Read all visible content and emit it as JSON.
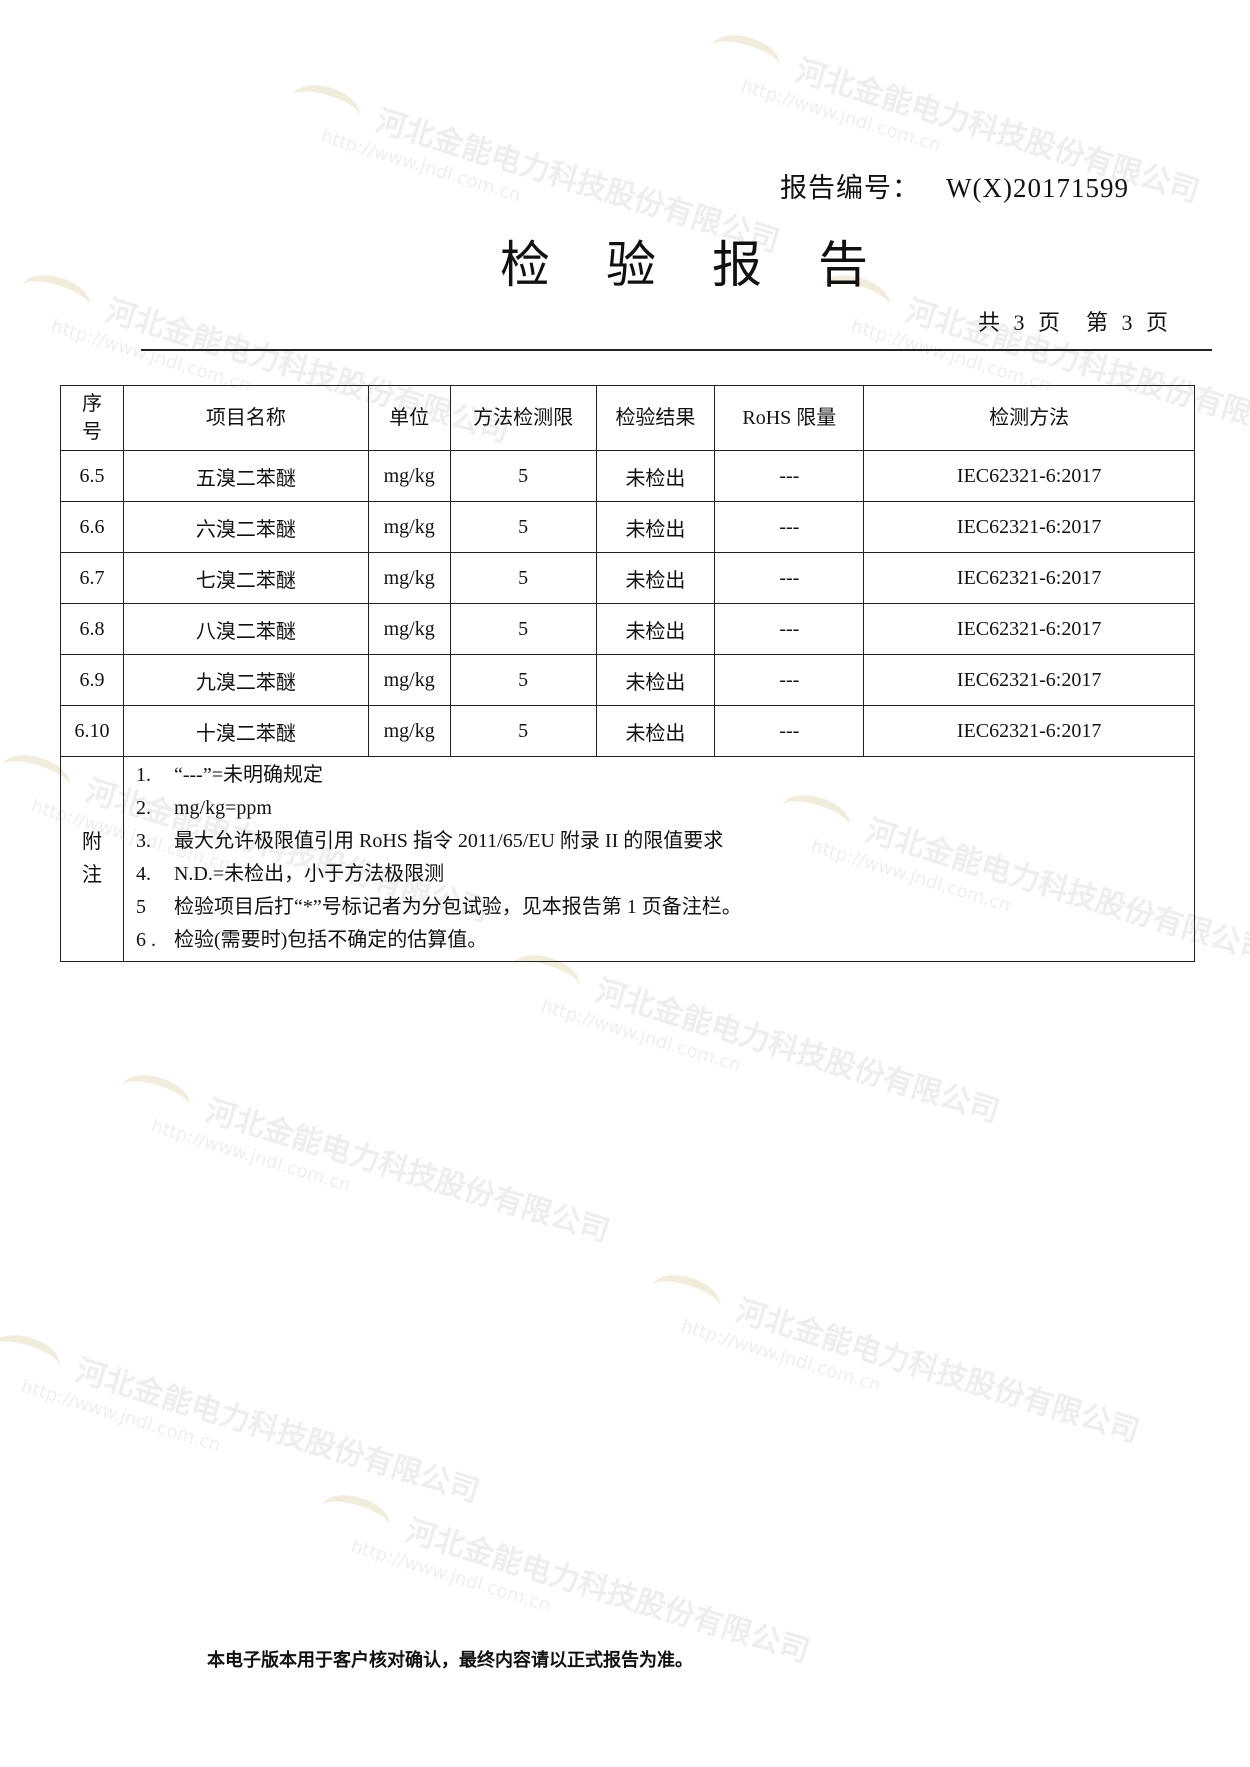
{
  "header": {
    "report_number_label": "报告编号：",
    "report_number": "W(X)20171599",
    "title": "检验报告",
    "pages_total": "共 3 页",
    "page_current": "第 3 页"
  },
  "table": {
    "columns": [
      "序号",
      "项目名称",
      "单位",
      "方法检测限",
      "检验结果",
      "RoHS 限量",
      "检测方法"
    ],
    "rows": [
      [
        "6.5",
        "五溴二苯醚",
        "mg/kg",
        "5",
        "未检出",
        "---",
        "IEC62321-6:2017"
      ],
      [
        "6.6",
        "六溴二苯醚",
        "mg/kg",
        "5",
        "未检出",
        "---",
        "IEC62321-6:2017"
      ],
      [
        "6.7",
        "七溴二苯醚",
        "mg/kg",
        "5",
        "未检出",
        "---",
        "IEC62321-6:2017"
      ],
      [
        "6.8",
        "八溴二苯醚",
        "mg/kg",
        "5",
        "未检出",
        "---",
        "IEC62321-6:2017"
      ],
      [
        "6.9",
        "九溴二苯醚",
        "mg/kg",
        "5",
        "未检出",
        "---",
        "IEC62321-6:2017"
      ],
      [
        "6.10",
        "十溴二苯醚",
        "mg/kg",
        "5",
        "未检出",
        "---",
        "IEC62321-6:2017"
      ]
    ],
    "notes_label": "附注",
    "notes": [
      {
        "num": "1.",
        "text": "“---”=未明确规定"
      },
      {
        "num": "2.",
        "text": "mg/kg=ppm"
      },
      {
        "num": "3.",
        "text": "最大允许极限值引用 RoHS 指令 2011/65/EU 附录 II 的限值要求"
      },
      {
        "num": "4.",
        "text": "N.D.=未检出，小于方法极限测"
      },
      {
        "num": "5",
        "text": "检验项目后打“*”号标记者为分包试验，见本报告第 1 页备注栏。"
      },
      {
        "num": "6 .",
        "text": "检验(需要时)包括不确定的估算值。"
      }
    ]
  },
  "footer": {
    "text": "本电子版本用于客户核对确认，最终内容请以正式报告为准。"
  },
  "watermark": {
    "company": "河北金能电力科技股份有限公司",
    "url": "http://www.jndl.com.cn",
    "logo_text": "金能电力"
  }
}
